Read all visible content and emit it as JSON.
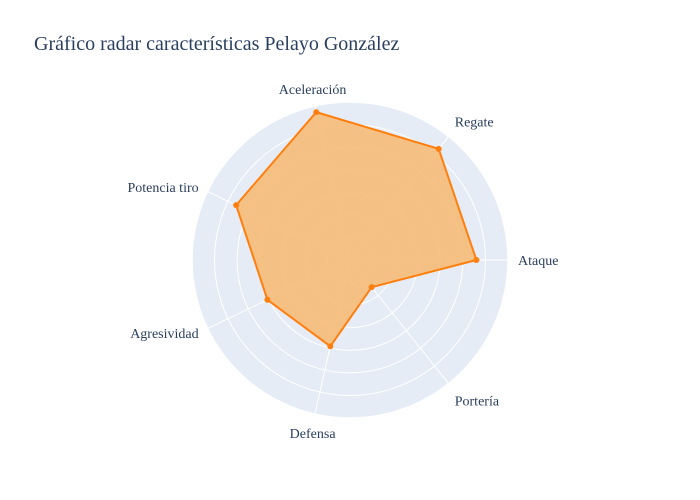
{
  "chart_data": {
    "type": "radar",
    "title": "Gráfico radar características Pelayo González",
    "categories": [
      "Ataque",
      "Regate",
      "Aceleración",
      "Potencia tiro",
      "Agresividad",
      "Defensa",
      "Portería"
    ],
    "series": [
      {
        "values": [
          80,
          90,
          96,
          80,
          58,
          56,
          22
        ]
      }
    ],
    "r_range": [
      0,
      100
    ],
    "grid": true,
    "colors": {
      "line": "#ff7f0e",
      "fill": "#f5bb78",
      "polar_bg": "#e5ecf6",
      "grid": "#ffffff"
    }
  }
}
